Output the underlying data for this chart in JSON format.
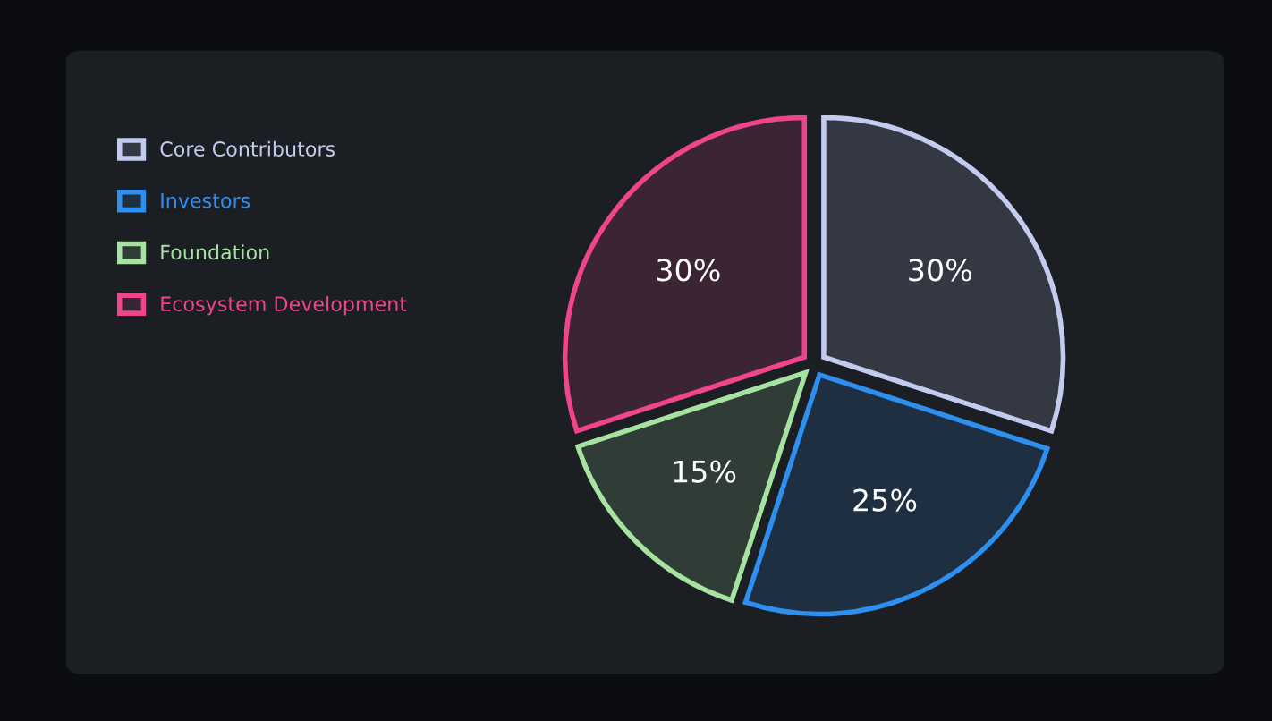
{
  "chart_data": {
    "type": "pie",
    "categories": [
      "Core Contributors",
      "Investors",
      "Foundation",
      "Ecosystem Development"
    ],
    "values": [
      30,
      25,
      15,
      30
    ],
    "colors": [
      "#c3cbef",
      "#2d8ff0",
      "#a6e3a1",
      "#f0448c"
    ],
    "value_labels": [
      "30%",
      "25%",
      "15%",
      "30%"
    ],
    "legend": "top left"
  }
}
